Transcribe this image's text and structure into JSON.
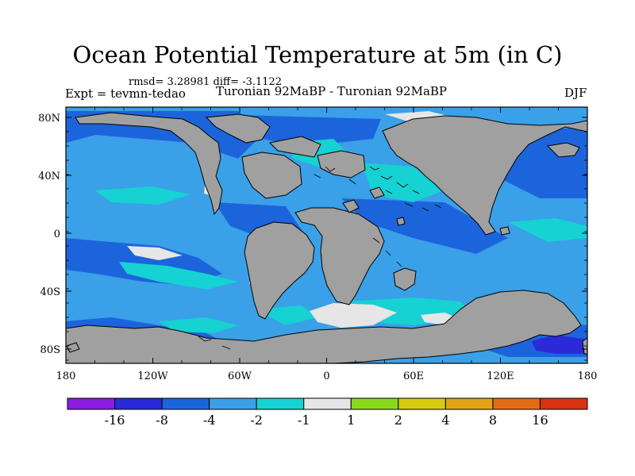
{
  "title": "Ocean Potential Temperature at 5m (in C)",
  "stats": "rmsd= 3.28981 diff= -3.1122",
  "expt": "Expt = tevmn-tedao",
  "run": "Turonian  92MaBP - Turonian  92MaBP",
  "season": "DJF",
  "axes": {
    "lat_ticks": [
      "80N",
      "40N",
      "0",
      "40S",
      "80S"
    ],
    "lon_ticks": [
      "180",
      "120W",
      "60W",
      "0",
      "60E",
      "120E",
      "180"
    ]
  },
  "colorbar": {
    "colors": [
      "#8a1de0",
      "#2a2ad8",
      "#1c64dc",
      "#3aa0e8",
      "#16d2d2",
      "#e6e6e6",
      "#8ad81c",
      "#d6cc12",
      "#e2a416",
      "#e26c14",
      "#d83414"
    ],
    "labels": [
      "-16",
      "-8",
      "-4",
      "-2",
      "-1",
      "1",
      "2",
      "4",
      "8",
      "16"
    ]
  },
  "map": {
    "land_color": "#a0a0a0",
    "ocean_base_color": "#3aa0e8"
  }
}
